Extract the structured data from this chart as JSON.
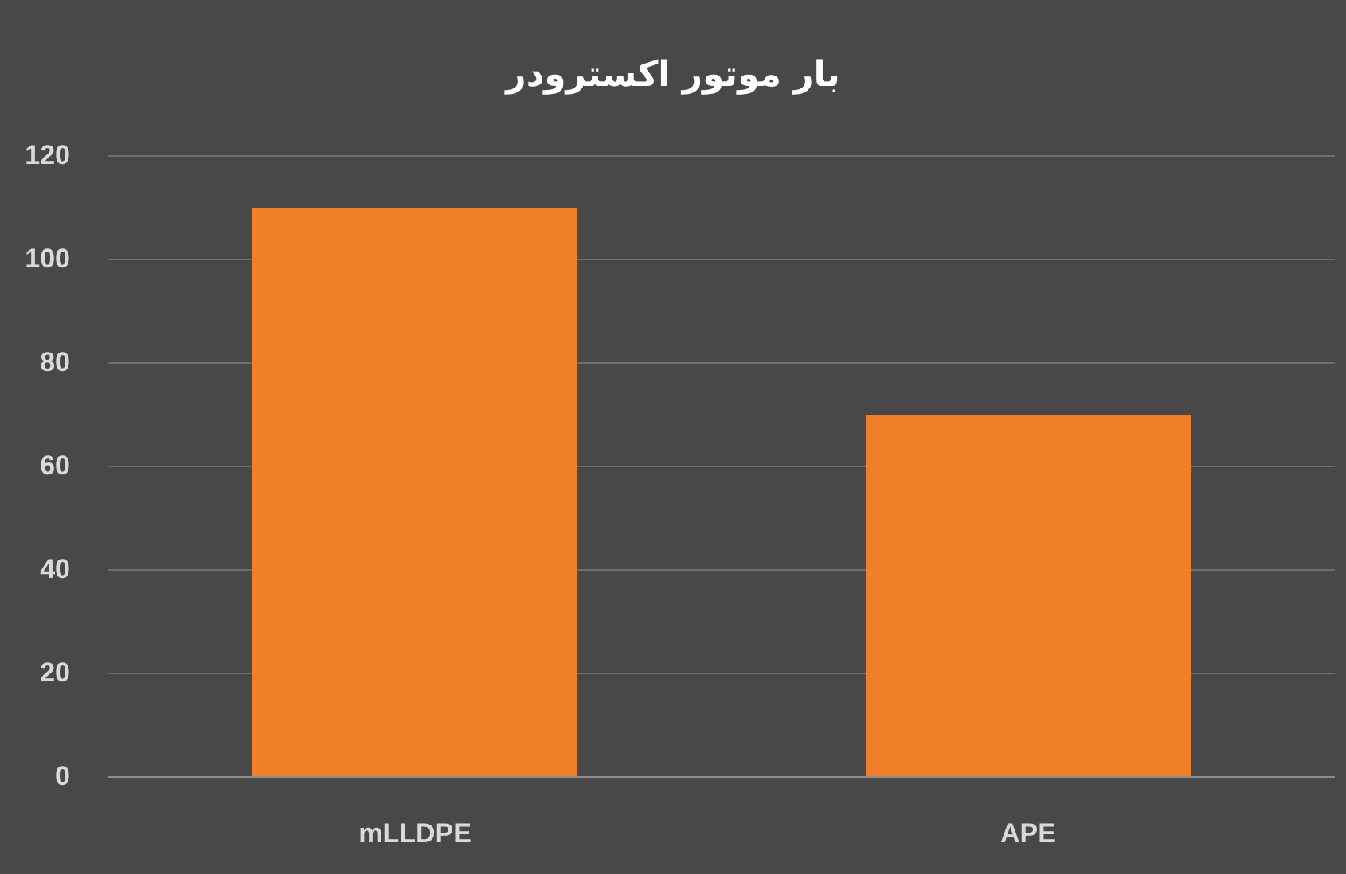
{
  "chart_data": {
    "type": "bar",
    "title": "بار موتور اکسترودر",
    "categories": [
      "mLLDPE",
      "APE"
    ],
    "values": [
      110,
      70
    ],
    "color": "#f07f2a",
    "ylim": [
      0,
      120
    ],
    "yticks": [
      0,
      20,
      40,
      60,
      80,
      100,
      120
    ],
    "grid": "y"
  }
}
